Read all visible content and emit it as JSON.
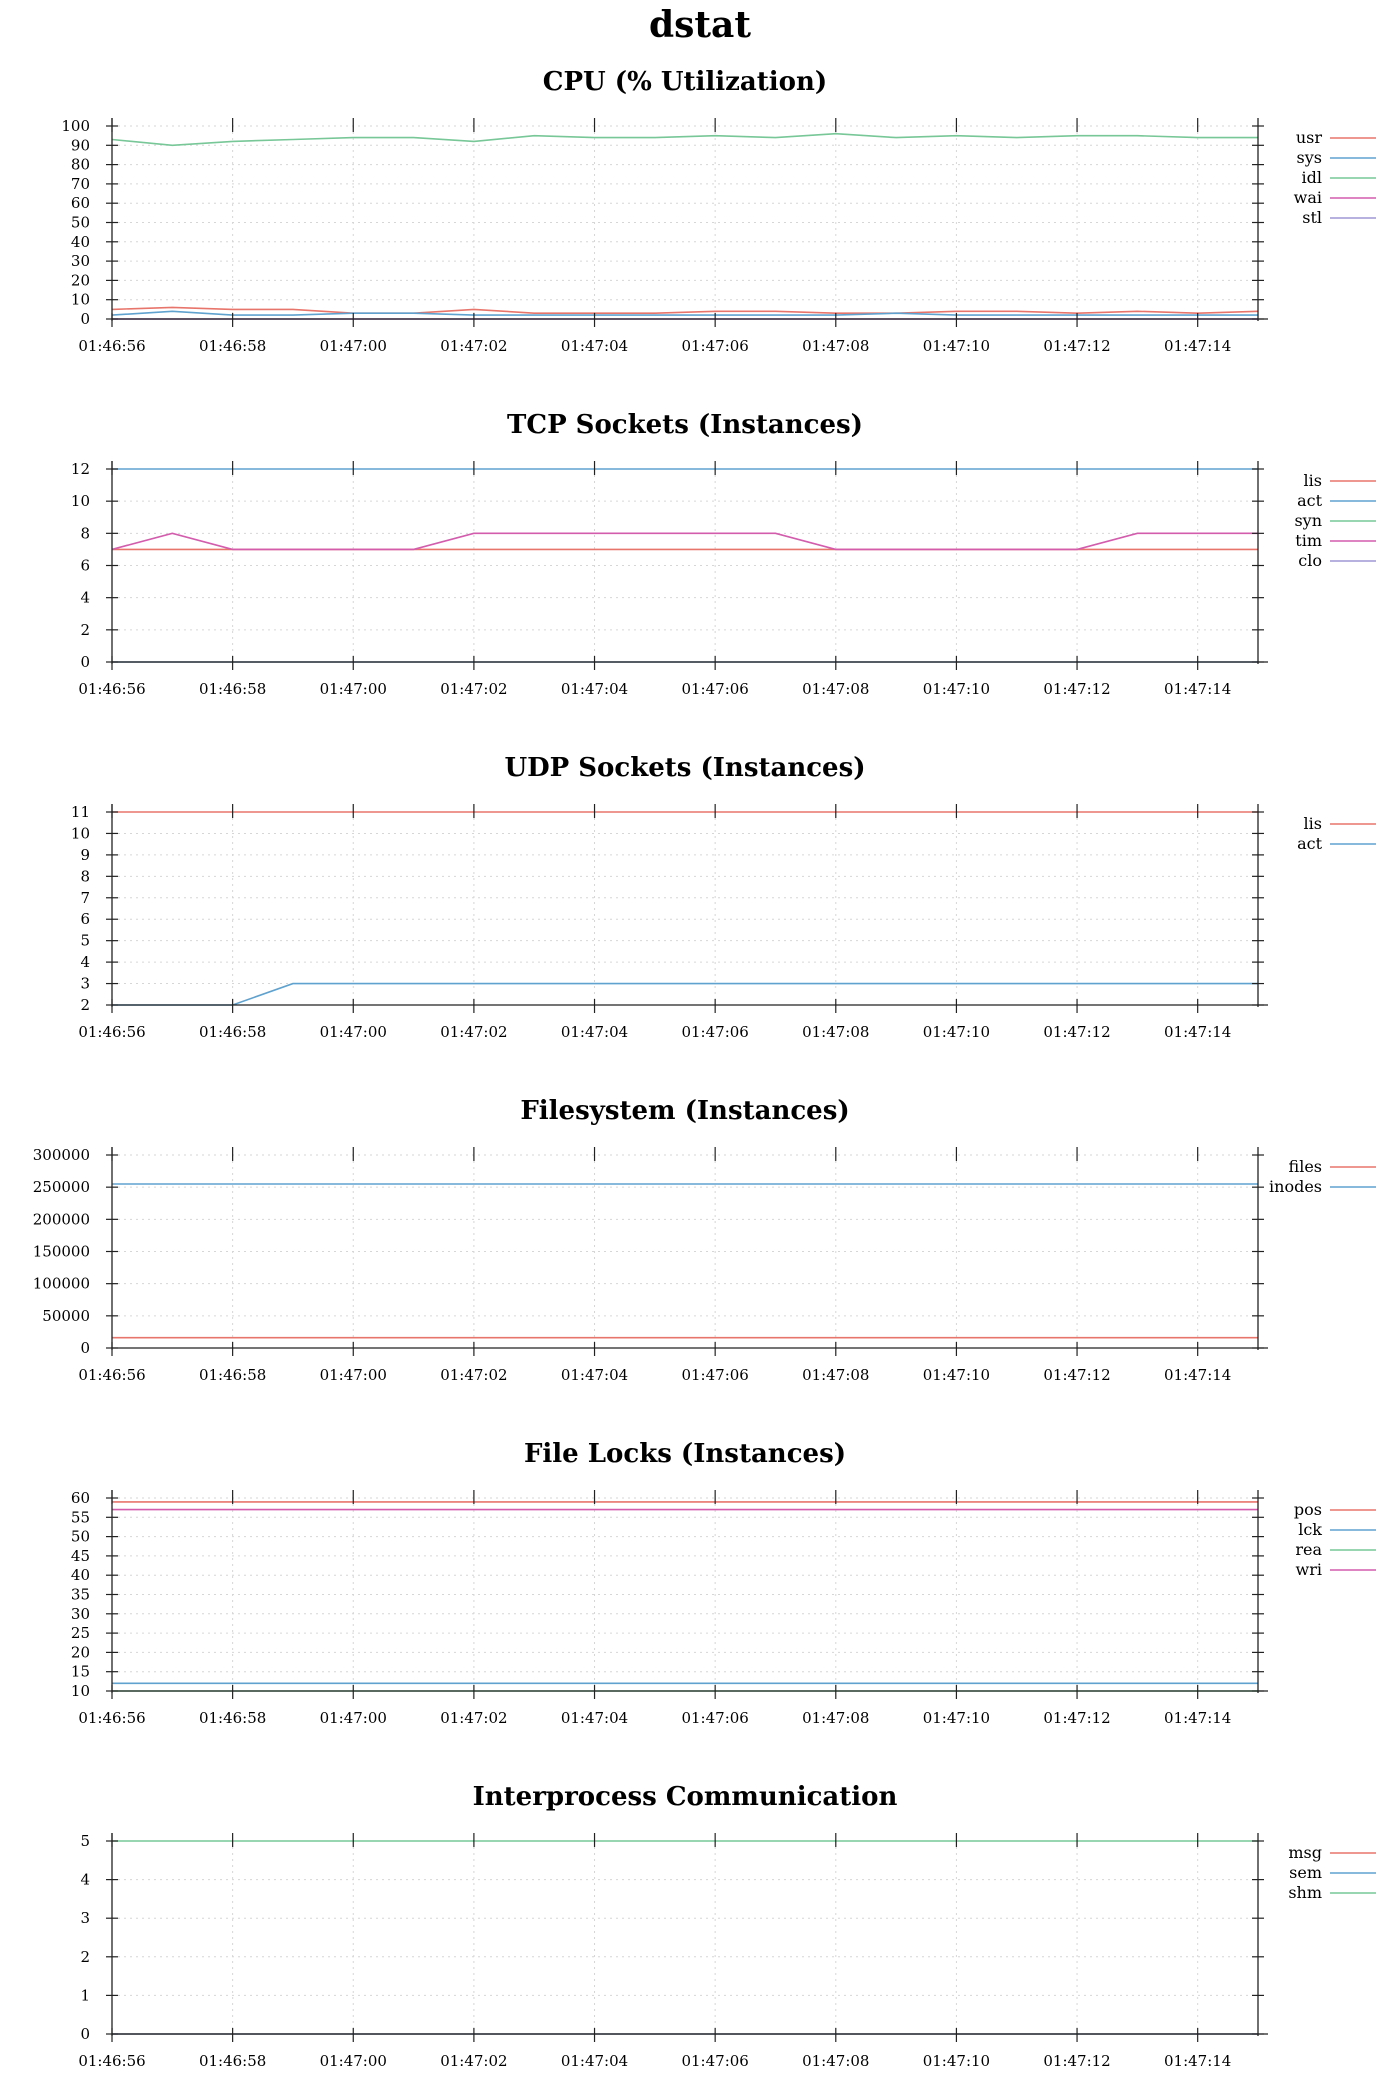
{
  "title": "dstat",
  "chart_data": [
    {
      "type": "line",
      "title": "CPU (% Utilization)",
      "x": [
        "01:46:56",
        "01:46:57",
        "01:46:58",
        "01:46:59",
        "01:47:00",
        "01:47:01",
        "01:47:02",
        "01:47:03",
        "01:47:04",
        "01:47:05",
        "01:47:06",
        "01:47:07",
        "01:47:08",
        "01:47:09",
        "01:47:10",
        "01:47:11",
        "01:47:12",
        "01:47:13",
        "01:47:14",
        "01:47:15"
      ],
      "xticks": [
        "01:46:56",
        "01:46:58",
        "01:47:00",
        "01:47:02",
        "01:47:04",
        "01:47:06",
        "01:47:08",
        "01:47:10",
        "01:47:12",
        "01:47:14"
      ],
      "ylim": [
        0,
        100
      ],
      "yticks": [
        0,
        10,
        20,
        30,
        40,
        50,
        60,
        70,
        80,
        90,
        100
      ],
      "legend": "right",
      "grid": true,
      "series": [
        {
          "name": "usr",
          "color": "#e8756b",
          "values": [
            5,
            6,
            5,
            5,
            3,
            3,
            5,
            3,
            3,
            3,
            4,
            4,
            3,
            3,
            4,
            4,
            3,
            4,
            3,
            4
          ]
        },
        {
          "name": "sys",
          "color": "#5fa2cf",
          "values": [
            2,
            4,
            2,
            2,
            3,
            3,
            2,
            2,
            2,
            2,
            2,
            2,
            2,
            3,
            2,
            2,
            2,
            2,
            2,
            2
          ]
        },
        {
          "name": "idl",
          "color": "#77c797",
          "values": [
            93,
            90,
            92,
            93,
            94,
            94,
            92,
            95,
            94,
            94,
            95,
            94,
            96,
            94,
            95,
            94,
            95,
            95,
            94,
            94
          ]
        },
        {
          "name": "wai",
          "color": "#d35cad",
          "values": [
            0,
            0,
            0,
            0,
            0,
            0,
            0,
            0,
            0,
            0,
            0,
            0,
            0,
            0,
            0,
            0,
            0,
            0,
            0,
            0
          ]
        },
        {
          "name": "stl",
          "color": "#9f97d6",
          "values": [
            0,
            0,
            0,
            0,
            0,
            0,
            0,
            0,
            0,
            0,
            0,
            0,
            0,
            0,
            0,
            0,
            0,
            0,
            0,
            0
          ]
        }
      ]
    },
    {
      "type": "line",
      "title": "TCP Sockets (Instances)",
      "x": [
        "01:46:56",
        "01:46:57",
        "01:46:58",
        "01:46:59",
        "01:47:00",
        "01:47:01",
        "01:47:02",
        "01:47:03",
        "01:47:04",
        "01:47:05",
        "01:47:06",
        "01:47:07",
        "01:47:08",
        "01:47:09",
        "01:47:10",
        "01:47:11",
        "01:47:12",
        "01:47:13",
        "01:47:14",
        "01:47:15"
      ],
      "xticks": [
        "01:46:56",
        "01:46:58",
        "01:47:00",
        "01:47:02",
        "01:47:04",
        "01:47:06",
        "01:47:08",
        "01:47:10",
        "01:47:12",
        "01:47:14"
      ],
      "ylim": [
        0,
        12
      ],
      "yticks": [
        0,
        2,
        4,
        6,
        8,
        10,
        12
      ],
      "legend": "right",
      "grid": true,
      "series": [
        {
          "name": "lis",
          "color": "#e8756b",
          "values": [
            7,
            7,
            7,
            7,
            7,
            7,
            7,
            7,
            7,
            7,
            7,
            7,
            7,
            7,
            7,
            7,
            7,
            7,
            7,
            7
          ]
        },
        {
          "name": "act",
          "color": "#5fa2cf",
          "values": [
            12,
            12,
            12,
            12,
            12,
            12,
            12,
            12,
            12,
            12,
            12,
            12,
            12,
            12,
            12,
            12,
            12,
            12,
            12,
            12
          ]
        },
        {
          "name": "syn",
          "color": "#77c797",
          "values": [
            0,
            0,
            0,
            0,
            0,
            0,
            0,
            0,
            0,
            0,
            0,
            0,
            0,
            0,
            0,
            0,
            0,
            0,
            0,
            0
          ]
        },
        {
          "name": "tim",
          "color": "#d35cad",
          "values": [
            7,
            8,
            7,
            7,
            7,
            7,
            8,
            8,
            8,
            8,
            8,
            8,
            7,
            7,
            7,
            7,
            7,
            8,
            8,
            8
          ]
        },
        {
          "name": "clo",
          "color": "#9f97d6",
          "values": [
            0,
            0,
            0,
            0,
            0,
            0,
            0,
            0,
            0,
            0,
            0,
            0,
            0,
            0,
            0,
            0,
            0,
            0,
            0,
            0
          ]
        }
      ]
    },
    {
      "type": "line",
      "title": "UDP Sockets (Instances)",
      "x": [
        "01:46:56",
        "01:46:57",
        "01:46:58",
        "01:46:59",
        "01:47:00",
        "01:47:01",
        "01:47:02",
        "01:47:03",
        "01:47:04",
        "01:47:05",
        "01:47:06",
        "01:47:07",
        "01:47:08",
        "01:47:09",
        "01:47:10",
        "01:47:11",
        "01:47:12",
        "01:47:13",
        "01:47:14",
        "01:47:15"
      ],
      "xticks": [
        "01:46:56",
        "01:46:58",
        "01:47:00",
        "01:47:02",
        "01:47:04",
        "01:47:06",
        "01:47:08",
        "01:47:10",
        "01:47:12",
        "01:47:14"
      ],
      "ylim": [
        2,
        11
      ],
      "yticks": [
        2,
        3,
        4,
        5,
        6,
        7,
        8,
        9,
        10,
        11
      ],
      "legend": "right",
      "grid": true,
      "series": [
        {
          "name": "lis",
          "color": "#e8756b",
          "values": [
            11,
            11,
            11,
            11,
            11,
            11,
            11,
            11,
            11,
            11,
            11,
            11,
            11,
            11,
            11,
            11,
            11,
            11,
            11,
            11
          ]
        },
        {
          "name": "act",
          "color": "#5fa2cf",
          "values": [
            2,
            2,
            2,
            3,
            3,
            3,
            3,
            3,
            3,
            3,
            3,
            3,
            3,
            3,
            3,
            3,
            3,
            3,
            3,
            3
          ]
        }
      ]
    },
    {
      "type": "line",
      "title": "Filesystem (Instances)",
      "x": [
        "01:46:56",
        "01:46:57",
        "01:46:58",
        "01:46:59",
        "01:47:00",
        "01:47:01",
        "01:47:02",
        "01:47:03",
        "01:47:04",
        "01:47:05",
        "01:47:06",
        "01:47:07",
        "01:47:08",
        "01:47:09",
        "01:47:10",
        "01:47:11",
        "01:47:12",
        "01:47:13",
        "01:47:14",
        "01:47:15"
      ],
      "xticks": [
        "01:46:56",
        "01:46:58",
        "01:47:00",
        "01:47:02",
        "01:47:04",
        "01:47:06",
        "01:47:08",
        "01:47:10",
        "01:47:12",
        "01:47:14"
      ],
      "ylim": [
        0,
        300000
      ],
      "yticks": [
        0,
        50000,
        100000,
        150000,
        200000,
        250000,
        300000
      ],
      "legend": "right",
      "grid": true,
      "series": [
        {
          "name": "files",
          "color": "#e8756b",
          "values": [
            16000,
            16000,
            16000,
            16000,
            16000,
            16000,
            16000,
            16000,
            16000,
            16000,
            16000,
            16000,
            16000,
            16000,
            16000,
            16000,
            16000,
            16000,
            16000,
            16000
          ]
        },
        {
          "name": "inodes",
          "color": "#5fa2cf",
          "values": [
            255000,
            255000,
            255000,
            255000,
            255000,
            255000,
            255000,
            255000,
            255000,
            255000,
            255000,
            255000,
            255000,
            255000,
            255000,
            255000,
            255000,
            255000,
            255000,
            255000
          ]
        }
      ]
    },
    {
      "type": "line",
      "title": "File Locks (Instances)",
      "x": [
        "01:46:56",
        "01:46:57",
        "01:46:58",
        "01:46:59",
        "01:47:00",
        "01:47:01",
        "01:47:02",
        "01:47:03",
        "01:47:04",
        "01:47:05",
        "01:47:06",
        "01:47:07",
        "01:47:08",
        "01:47:09",
        "01:47:10",
        "01:47:11",
        "01:47:12",
        "01:47:13",
        "01:47:14",
        "01:47:15"
      ],
      "xticks": [
        "01:46:56",
        "01:46:58",
        "01:47:00",
        "01:47:02",
        "01:47:04",
        "01:47:06",
        "01:47:08",
        "01:47:10",
        "01:47:12",
        "01:47:14"
      ],
      "ylim": [
        10,
        60
      ],
      "yticks": [
        10,
        15,
        20,
        25,
        30,
        35,
        40,
        45,
        50,
        55,
        60
      ],
      "legend": "right",
      "grid": true,
      "series": [
        {
          "name": "pos",
          "color": "#e8756b",
          "values": [
            59,
            59,
            59,
            59,
            59,
            59,
            59,
            59,
            59,
            59,
            59,
            59,
            59,
            59,
            59,
            59,
            59,
            59,
            59,
            59
          ]
        },
        {
          "name": "lck",
          "color": "#5fa2cf",
          "values": [
            12,
            12,
            12,
            12,
            12,
            12,
            12,
            12,
            12,
            12,
            12,
            12,
            12,
            12,
            12,
            12,
            12,
            12,
            12,
            12
          ]
        },
        {
          "name": "rea",
          "color": "#77c797",
          "values": [
            10,
            10,
            10,
            10,
            10,
            10,
            10,
            10,
            10,
            10,
            10,
            10,
            10,
            10,
            10,
            10,
            10,
            10,
            10,
            10
          ]
        },
        {
          "name": "wri",
          "color": "#d35cad",
          "values": [
            57,
            57,
            57,
            57,
            57,
            57,
            57,
            57,
            57,
            57,
            57,
            57,
            57,
            57,
            57,
            57,
            57,
            57,
            57,
            57
          ]
        }
      ]
    },
    {
      "type": "line",
      "title": "Interprocess Communication",
      "x": [
        "01:46:56",
        "01:46:57",
        "01:46:58",
        "01:46:59",
        "01:47:00",
        "01:47:01",
        "01:47:02",
        "01:47:03",
        "01:47:04",
        "01:47:05",
        "01:47:06",
        "01:47:07",
        "01:47:08",
        "01:47:09",
        "01:47:10",
        "01:47:11",
        "01:47:12",
        "01:47:13",
        "01:47:14",
        "01:47:15"
      ],
      "xticks": [
        "01:46:56",
        "01:46:58",
        "01:47:00",
        "01:47:02",
        "01:47:04",
        "01:47:06",
        "01:47:08",
        "01:47:10",
        "01:47:12",
        "01:47:14"
      ],
      "ylim": [
        0,
        5
      ],
      "yticks": [
        0,
        1,
        2,
        3,
        4,
        5
      ],
      "legend": "right",
      "grid": true,
      "series": [
        {
          "name": "msg",
          "color": "#e8756b",
          "values": [
            0,
            0,
            0,
            0,
            0,
            0,
            0,
            0,
            0,
            0,
            0,
            0,
            0,
            0,
            0,
            0,
            0,
            0,
            0,
            0
          ]
        },
        {
          "name": "sem",
          "color": "#5fa2cf",
          "values": [
            0,
            0,
            0,
            0,
            0,
            0,
            0,
            0,
            0,
            0,
            0,
            0,
            0,
            0,
            0,
            0,
            0,
            0,
            0,
            0
          ]
        },
        {
          "name": "shm",
          "color": "#77c797",
          "values": [
            5,
            5,
            5,
            5,
            5,
            5,
            5,
            5,
            5,
            5,
            5,
            5,
            5,
            5,
            5,
            5,
            5,
            5,
            5,
            5
          ]
        }
      ]
    }
  ]
}
